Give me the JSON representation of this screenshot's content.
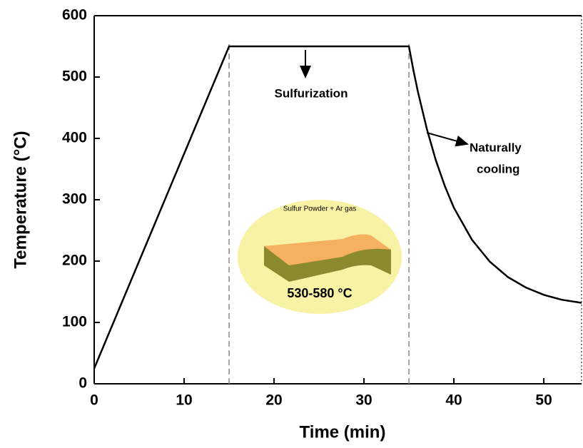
{
  "chart_data": {
    "type": "line",
    "xlabel": "Time (min)",
    "ylabel": "Temperature (°C)",
    "x": [
      0,
      15,
      35,
      35.5,
      36,
      37,
      38,
      39,
      40,
      42,
      44,
      46,
      48,
      50,
      52,
      54.2
    ],
    "series": [
      {
        "color": "#000000",
        "values": [
          25,
          550,
          550,
          511,
          476,
          415,
          364,
          322,
          287,
          235,
          199,
          174,
          157,
          145,
          137,
          132
        ]
      }
    ],
    "xlim": [
      0,
      54.2
    ],
    "ylim": [
      0,
      600
    ],
    "xticks": [
      0,
      10,
      20,
      30,
      40,
      50
    ],
    "yticks": [
      0,
      100,
      200,
      300,
      400,
      500,
      600
    ],
    "vlines": [
      15,
      35
    ],
    "annotations": {
      "sulfurization": "Sulfurization",
      "cooling": [
        "Naturally",
        "cooling"
      ],
      "inset_title": "Sulfur Powder + Ar gas",
      "inset_temp": "530-580 °C"
    }
  }
}
